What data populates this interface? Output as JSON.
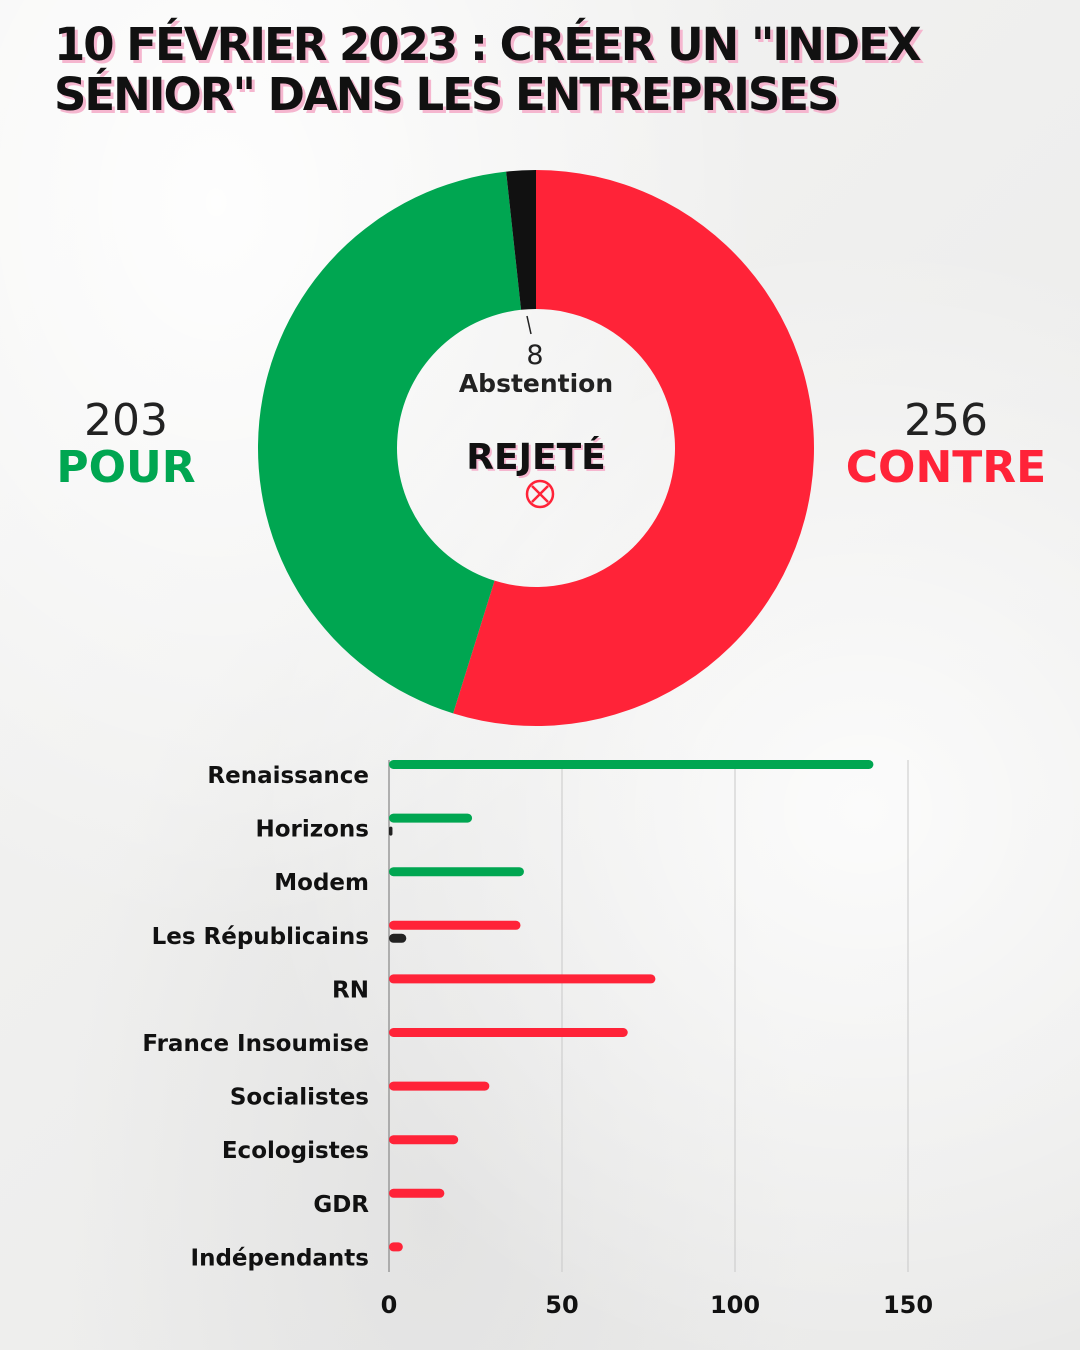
{
  "header": {
    "title_line1": "10 FÉVRIER 2023 : CRÉER UN \"INDEX",
    "title_line2": "SÉNIOR\" DANS LES ENTREPRISES"
  },
  "colors": {
    "pour": "#00a651",
    "contre": "#ff2338",
    "abstention": "#111111"
  },
  "chart_data": [
    {
      "type": "pie",
      "donut": true,
      "slices": [
        {
          "name": "CONTRE",
          "value": 256,
          "color": "#ff2338"
        },
        {
          "name": "POUR",
          "value": 203,
          "color": "#00a651"
        },
        {
          "name": "Abstention",
          "value": 8,
          "color": "#111111"
        }
      ],
      "labels": {
        "pour_value": "203",
        "pour_label": "POUR",
        "contre_value": "256",
        "contre_label": "CONTRE",
        "abstention_value": "8",
        "abstention_label": "Abstention"
      },
      "result": "REJETÉ",
      "result_icon": "circled-x-icon"
    },
    {
      "type": "bar",
      "orientation": "horizontal",
      "categories": [
        "Renaissance",
        "Horizons",
        "Modem",
        "Les Républicains",
        "RN",
        "France Insoumise",
        "Socialistes",
        "Ecologistes",
        "GDR",
        "Indépendants"
      ],
      "series": [
        {
          "key": "pour",
          "color": "#00a651",
          "values": [
            140,
            24,
            39,
            0,
            0,
            0,
            0,
            0,
            0,
            0
          ]
        },
        {
          "key": "contre",
          "color": "#ff2338",
          "values": [
            0,
            0,
            0,
            38,
            77,
            69,
            29,
            20,
            16,
            4
          ]
        },
        {
          "key": "abstention",
          "color": "#222222",
          "values": [
            0,
            1,
            0,
            5,
            0,
            0,
            0,
            0,
            0,
            0
          ]
        }
      ],
      "xlim": [
        0,
        190
      ],
      "xticks": [
        0,
        50,
        100,
        150
      ],
      "grid": true
    }
  ]
}
